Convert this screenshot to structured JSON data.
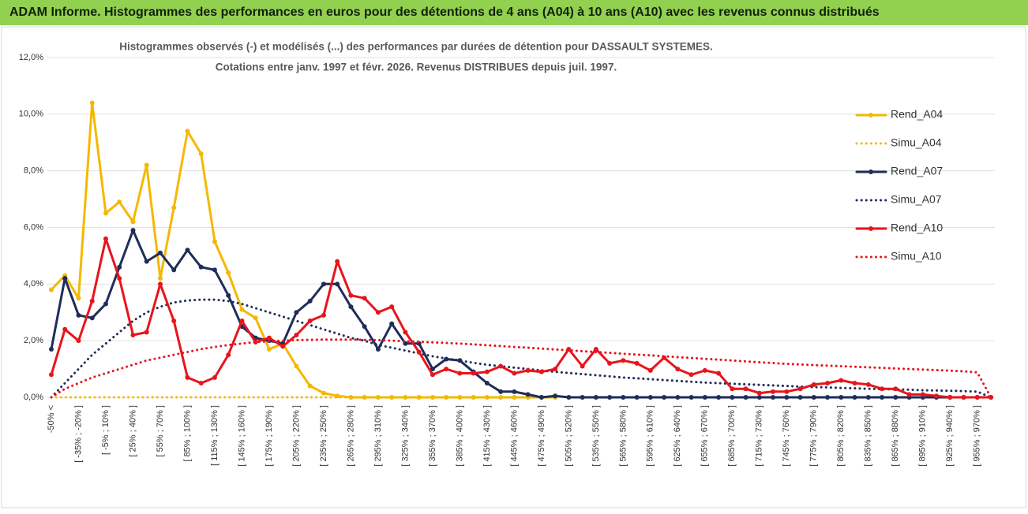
{
  "banner": "ADAM Informe. Histogrammes des performances en euros pour des détentions de 4 ans (A04) à 10 ans (A10) avec les revenus connus distribués",
  "chart_data": {
    "type": "line",
    "title": "Histogrammes observés (-) et modélisés (...) des performances par durées de détention pour DASSAULT SYSTEMES.",
    "subtitle": "Cotations entre janv. 1997 et févr. 2026. Revenus DISTRIBUES depuis juil. 1997.",
    "categories": [
      "-50% <",
      null,
      "[ -35% ; -20% ]",
      null,
      "[ -5% ; 10% ]",
      null,
      "[ 25% ; 40% ]",
      null,
      "[ 55% ; 70% ]",
      null,
      "[ 85% ; 100% ]",
      null,
      "[ 115% ; 130% ]",
      null,
      "[ 145% ; 160% ]",
      null,
      "[ 175% ; 190% ]",
      null,
      "[ 205% ; 220% ]",
      null,
      "[ 235% ; 250% ]",
      null,
      "[ 265% ; 280% ]",
      null,
      "[ 295% ; 310% ]",
      null,
      "[ 325% ; 340% ]",
      null,
      "[ 355% ; 370% ]",
      null,
      "[ 385% ; 400% ]",
      null,
      "[ 415% ; 430% ]",
      null,
      "[ 445% ; 460% ]",
      null,
      "[ 475% ; 490% ]",
      null,
      "[ 505% ; 520% ]",
      null,
      "[ 535% ; 550% ]",
      null,
      "[ 565% ; 580% ]",
      null,
      "[ 595% ; 610% ]",
      null,
      "[ 625% ; 640% ]",
      null,
      "[ 655% ; 670% ]",
      null,
      "[ 685% ; 700% ]",
      null,
      "[ 715% ; 730% ]",
      null,
      "[ 745% ; 760% ]",
      null,
      "[ 775% ; 790% ]",
      null,
      "[ 805% ; 820% ]",
      null,
      "[ 835% ; 850% ]",
      null,
      "[ 865% ; 880% ]",
      null,
      "[ 895% ; 910% ]",
      null,
      "[ 925% ; 940% ]",
      null,
      "[ 955% ; 970% ]",
      null
    ],
    "ylim": [
      0,
      12
    ],
    "yticks": [
      {
        "value": 0,
        "label": "0,0%"
      },
      {
        "value": 2,
        "label": "2,0%"
      },
      {
        "value": 4,
        "label": "4,0%"
      },
      {
        "value": 6,
        "label": "6,0%"
      },
      {
        "value": 8,
        "label": "8,0%"
      },
      {
        "value": 10,
        "label": "10,0%"
      },
      {
        "value": 12,
        "label": "12,0%"
      }
    ],
    "grid": true,
    "legend": "right",
    "series": [
      {
        "name": "Rend_A04",
        "color": "#f5b800",
        "line_style": "solid",
        "markers": true,
        "values": [
          3.8,
          4.3,
          3.5,
          10.4,
          6.5,
          6.9,
          6.2,
          8.2,
          4.2,
          6.7,
          9.4,
          8.6,
          5.5,
          4.4,
          3.1,
          2.8,
          1.7,
          1.9,
          1.1,
          0.4,
          0.15,
          0.05,
          0,
          0,
          0,
          0,
          0,
          0,
          0,
          0,
          0,
          0,
          0,
          0,
          0,
          0,
          0,
          0,
          null,
          null,
          null,
          null,
          null,
          null,
          null,
          null,
          null,
          null,
          null,
          null,
          null,
          null,
          null,
          null,
          null,
          null,
          null,
          null,
          null,
          null,
          null,
          null,
          null,
          null,
          null,
          null,
          null,
          null,
          null,
          null
        ]
      },
      {
        "name": "Simu_A04",
        "color": "#f5b800",
        "line_style": "dotted",
        "markers": false,
        "values": [
          0,
          0,
          0,
          0,
          0,
          0,
          0,
          0,
          0,
          0,
          0,
          0,
          0,
          0,
          0,
          0,
          0,
          0,
          0,
          0,
          0,
          0,
          0,
          0,
          0,
          0,
          0,
          0,
          0,
          0,
          0,
          0,
          0,
          0,
          0,
          0,
          0,
          0,
          null,
          null,
          null,
          null,
          null,
          null,
          null,
          null,
          null,
          null,
          null,
          null,
          null,
          null,
          null,
          null,
          null,
          null,
          null,
          null,
          null,
          null,
          null,
          null,
          null,
          null,
          null,
          null,
          null,
          null,
          null,
          null
        ]
      },
      {
        "name": "Rend_A07",
        "color": "#1f2d5a",
        "line_style": "solid",
        "markers": true,
        "values": [
          1.7,
          4.2,
          2.9,
          2.8,
          3.3,
          4.6,
          5.9,
          4.8,
          5.1,
          4.5,
          5.2,
          4.6,
          4.5,
          3.6,
          2.5,
          2.1,
          2.0,
          1.9,
          3.0,
          3.4,
          4.0,
          4.0,
          3.2,
          2.5,
          1.7,
          2.6,
          1.9,
          1.9,
          1.0,
          1.35,
          1.3,
          0.9,
          0.5,
          0.2,
          0.2,
          0.1,
          0,
          0.05,
          0,
          0,
          0,
          0,
          0,
          0,
          0,
          0,
          0,
          0,
          0,
          0,
          0,
          0,
          0,
          0,
          0,
          0,
          0,
          0,
          0,
          0,
          0,
          0,
          0,
          0,
          0,
          0,
          0,
          0,
          0,
          0
        ]
      },
      {
        "name": "Simu_A07",
        "color": "#1f2d5a",
        "line_style": "dotted",
        "markers": false,
        "values": [
          0,
          0.5,
          1.0,
          1.5,
          1.9,
          2.3,
          2.7,
          3.0,
          3.2,
          3.35,
          3.42,
          3.45,
          3.45,
          3.4,
          3.3,
          3.15,
          3.0,
          2.85,
          2.7,
          2.55,
          2.4,
          2.25,
          2.1,
          2.0,
          1.85,
          1.75,
          1.65,
          1.55,
          1.45,
          1.37,
          1.3,
          1.22,
          1.15,
          1.1,
          1.05,
          1.0,
          0.95,
          0.9,
          0.86,
          0.82,
          0.78,
          0.74,
          0.7,
          0.67,
          0.64,
          0.61,
          0.58,
          0.55,
          0.52,
          0.5,
          0.48,
          0.46,
          0.44,
          0.42,
          0.4,
          0.38,
          0.36,
          0.35,
          0.33,
          0.32,
          0.3,
          0.29,
          0.28,
          0.27,
          0.25,
          0.24,
          0.23,
          0.22,
          0.2,
          0
        ]
      },
      {
        "name": "Rend_A10",
        "color": "#e8141c",
        "line_style": "solid",
        "markers": true,
        "values": [
          0.8,
          2.4,
          2.0,
          3.4,
          5.6,
          4.2,
          2.2,
          2.3,
          4.0,
          2.7,
          0.7,
          0.5,
          0.7,
          1.5,
          2.7,
          1.95,
          2.1,
          1.8,
          2.2,
          2.7,
          2.9,
          4.8,
          3.6,
          3.5,
          3.0,
          3.2,
          2.3,
          1.6,
          0.8,
          1.0,
          0.85,
          0.85,
          0.9,
          1.1,
          0.85,
          0.95,
          0.9,
          1.0,
          1.7,
          1.1,
          1.7,
          1.2,
          1.3,
          1.2,
          0.95,
          1.4,
          1.0,
          0.8,
          0.95,
          0.85,
          0.3,
          0.3,
          0.15,
          0.2,
          0.2,
          0.3,
          0.45,
          0.5,
          0.6,
          0.5,
          0.45,
          0.3,
          0.3,
          0.1,
          0.1,
          0.05,
          0,
          0,
          0,
          0
        ]
      },
      {
        "name": "Simu_A10",
        "color": "#e8141c",
        "line_style": "dotted",
        "markers": false,
        "values": [
          0,
          0.3,
          0.5,
          0.7,
          0.85,
          1.0,
          1.15,
          1.3,
          1.4,
          1.5,
          1.6,
          1.7,
          1.78,
          1.85,
          1.9,
          1.95,
          1.98,
          2.0,
          2.02,
          2.03,
          2.04,
          2.04,
          2.04,
          2.03,
          2.02,
          2.0,
          1.98,
          1.96,
          1.94,
          1.92,
          1.9,
          1.87,
          1.84,
          1.81,
          1.78,
          1.75,
          1.72,
          1.69,
          1.66,
          1.63,
          1.6,
          1.57,
          1.54,
          1.51,
          1.48,
          1.45,
          1.42,
          1.39,
          1.36,
          1.33,
          1.3,
          1.27,
          1.24,
          1.21,
          1.18,
          1.16,
          1.14,
          1.12,
          1.1,
          1.08,
          1.06,
          1.04,
          1.02,
          1.0,
          0.98,
          0.96,
          0.94,
          0.92,
          0.88,
          0
        ]
      }
    ]
  }
}
